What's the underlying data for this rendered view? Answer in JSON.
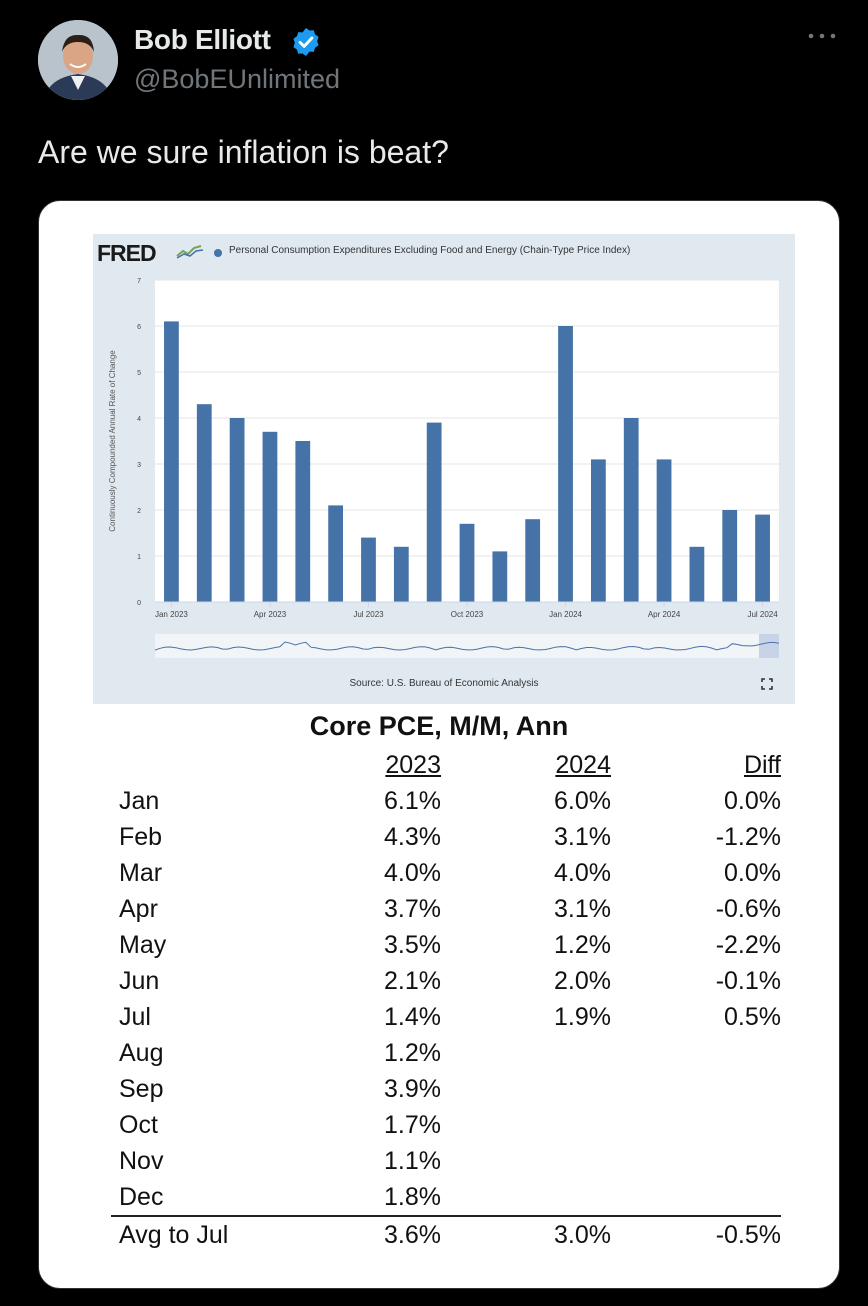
{
  "author": {
    "name": "Bob Elliott",
    "handle": "@BobEUnlimited"
  },
  "tweet_text": "Are we sure inflation is beat?",
  "colors": {
    "background": "#000000",
    "verified": "#1d9bf0",
    "bar": "#4572a7"
  },
  "icons": [
    "verified-badge-icon",
    "more-icon",
    "fred-graph-icon",
    "expand-icon"
  ],
  "fred": {
    "logo": "FRED",
    "legend": "Personal Consumption Expenditures Excluding Food and Energy (Chain-Type Price Index)",
    "ylabel": "Continuously Compounded Annual Rate of Change",
    "source": "Source: U.S. Bureau of Economic Analysis"
  },
  "chart_data": {
    "type": "bar",
    "title": "Personal Consumption Expenditures Excluding Food and Energy (Chain-Type Price Index)",
    "categories": [
      "Jan 2023",
      "Feb 2023",
      "Mar 2023",
      "Apr 2023",
      "May 2023",
      "Jun 2023",
      "Jul 2023",
      "Aug 2023",
      "Sep 2023",
      "Oct 2023",
      "Nov 2023",
      "Dec 2023",
      "Jan 2024",
      "Feb 2024",
      "Mar 2024",
      "Apr 2024",
      "May 2024",
      "Jun 2024",
      "Jul 2024"
    ],
    "values": [
      6.1,
      4.3,
      4.0,
      3.7,
      3.5,
      2.1,
      1.4,
      1.2,
      3.9,
      1.7,
      1.1,
      1.8,
      6.0,
      3.1,
      4.0,
      3.1,
      1.2,
      2.0,
      1.9
    ],
    "xticks": [
      "Jan 2023",
      "Apr 2023",
      "Jul 2023",
      "Oct 2023",
      "Jan 2024",
      "Apr 2024",
      "Jul 2024"
    ],
    "yticks": [
      0,
      1,
      2,
      3,
      4,
      5,
      6,
      7
    ],
    "ylim": [
      0,
      7
    ],
    "xlabel": "",
    "ylabel": "Continuously Compounded Annual Rate of Change",
    "grid": true
  },
  "table": {
    "title": "Core PCE, M/M, Ann",
    "headers": [
      "2023",
      "2024",
      "Diff"
    ],
    "rows": [
      {
        "month": "Jan",
        "y2023": "6.1%",
        "y2024": "6.0%",
        "diff": "0.0%"
      },
      {
        "month": "Feb",
        "y2023": "4.3%",
        "y2024": "3.1%",
        "diff": "-1.2%"
      },
      {
        "month": "Mar",
        "y2023": "4.0%",
        "y2024": "4.0%",
        "diff": "0.0%"
      },
      {
        "month": "Apr",
        "y2023": "3.7%",
        "y2024": "3.1%",
        "diff": "-0.6%"
      },
      {
        "month": "May",
        "y2023": "3.5%",
        "y2024": "1.2%",
        "diff": "-2.2%"
      },
      {
        "month": "Jun",
        "y2023": "2.1%",
        "y2024": "2.0%",
        "diff": "-0.1%"
      },
      {
        "month": "Jul",
        "y2023": "1.4%",
        "y2024": "1.9%",
        "diff": "0.5%"
      },
      {
        "month": "Aug",
        "y2023": "1.2%",
        "y2024": "",
        "diff": ""
      },
      {
        "month": "Sep",
        "y2023": "3.9%",
        "y2024": "",
        "diff": ""
      },
      {
        "month": "Oct",
        "y2023": "1.7%",
        "y2024": "",
        "diff": ""
      },
      {
        "month": "Nov",
        "y2023": "1.1%",
        "y2024": "",
        "diff": ""
      },
      {
        "month": "Dec",
        "y2023": "1.8%",
        "y2024": "",
        "diff": ""
      }
    ],
    "summary": {
      "label": "Avg to Jul",
      "y2023": "3.6%",
      "y2024": "3.0%",
      "diff": "-0.5%"
    }
  }
}
